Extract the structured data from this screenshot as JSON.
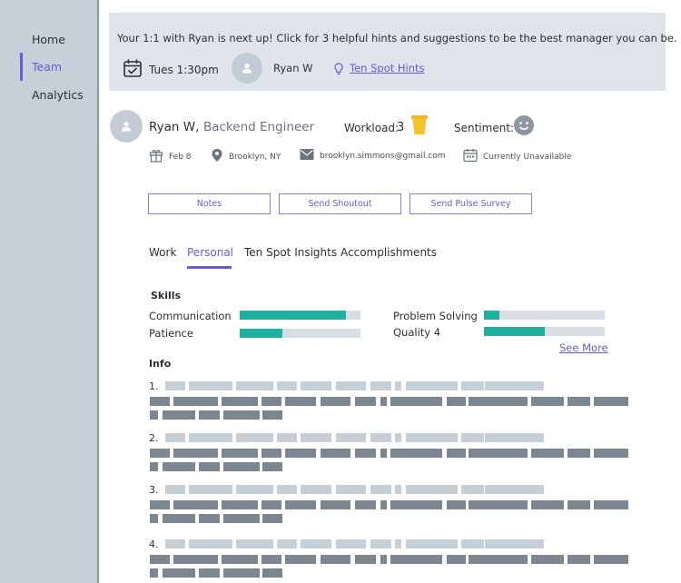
{
  "sidebar": {
    "items": [
      {
        "label": "Home"
      },
      {
        "label": "Team",
        "active": true
      },
      {
        "label": "Analytics"
      }
    ]
  },
  "banner": {
    "message": "Your 1:1 with Ryan is next up! Click for 3 helpful hints and suggestions to be the best manager you can be.",
    "time": "Tues 1:30pm",
    "name": "Ryan W",
    "hints_link": "Ten Spot Hints"
  },
  "profile": {
    "name": "Ryan W,",
    "title": "Backend Engineer",
    "workload_label": "Workload:",
    "workload_value": "3",
    "sentiment_label": "Sentiment:",
    "birthday": "Feb 8",
    "location": "Brooklyn, NY",
    "email": "brooklyn.simmons@gmail.com",
    "availability": "Currently Unavailable"
  },
  "actions": {
    "notes": "Notes",
    "shoutout": "Send Shoutout",
    "pulse": "Send Pulse Survey"
  },
  "tabs": [
    {
      "label": "Work"
    },
    {
      "label": "Personal",
      "active": true
    },
    {
      "label": "Ten Spot Insights"
    },
    {
      "label": "Accomplishments"
    }
  ],
  "skills": {
    "heading": "Skills",
    "items": [
      {
        "label": "Communication",
        "level": 0.88
      },
      {
        "label": "Patience",
        "level": 0.35
      },
      {
        "label": "Problem Solving",
        "level": 0.13
      },
      {
        "label": "Quality 4",
        "level": 0.5
      }
    ],
    "see_more": "See More"
  },
  "info": {
    "heading": "Info",
    "numbers": [
      "1.",
      "2.",
      "3.",
      "4."
    ]
  },
  "colors": {
    "accent": "#6a58d6",
    "skill_fill": "#1fb0a0",
    "banner_bg": "#dfe4ea",
    "sidebar_bg": "#c5d0d9"
  }
}
